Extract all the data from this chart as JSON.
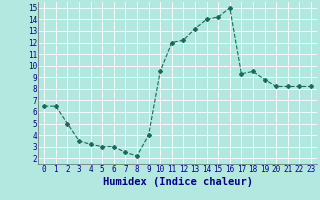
{
  "x": [
    0,
    1,
    2,
    3,
    4,
    5,
    6,
    7,
    8,
    9,
    10,
    11,
    12,
    13,
    14,
    15,
    16,
    17,
    18,
    19,
    20,
    21,
    22,
    23
  ],
  "y": [
    6.5,
    6.5,
    5.0,
    3.5,
    3.2,
    3.0,
    3.0,
    2.5,
    2.2,
    4.0,
    9.5,
    12.0,
    12.2,
    13.2,
    14.0,
    14.2,
    15.0,
    9.3,
    9.5,
    8.8,
    8.2,
    8.2,
    8.2,
    8.2
  ],
  "line_color": "#1a6b5a",
  "marker": "D",
  "marker_size": 2.0,
  "background_color": "#b2e8e0",
  "grid_color": "#ffffff",
  "xlabel": "Humidex (Indice chaleur)",
  "ylim": [
    1.5,
    15.5
  ],
  "xlim": [
    -0.5,
    23.5
  ],
  "yticks": [
    2,
    3,
    4,
    5,
    6,
    7,
    8,
    9,
    10,
    11,
    12,
    13,
    14,
    15
  ],
  "xticks": [
    0,
    1,
    2,
    3,
    4,
    5,
    6,
    7,
    8,
    9,
    10,
    11,
    12,
    13,
    14,
    15,
    16,
    17,
    18,
    19,
    20,
    21,
    22,
    23
  ],
  "tick_label_fontsize": 5.5,
  "xlabel_fontsize": 7.5,
  "xlabel_color": "#00008b",
  "tick_color": "#00008b",
  "spine_color": "#666666"
}
